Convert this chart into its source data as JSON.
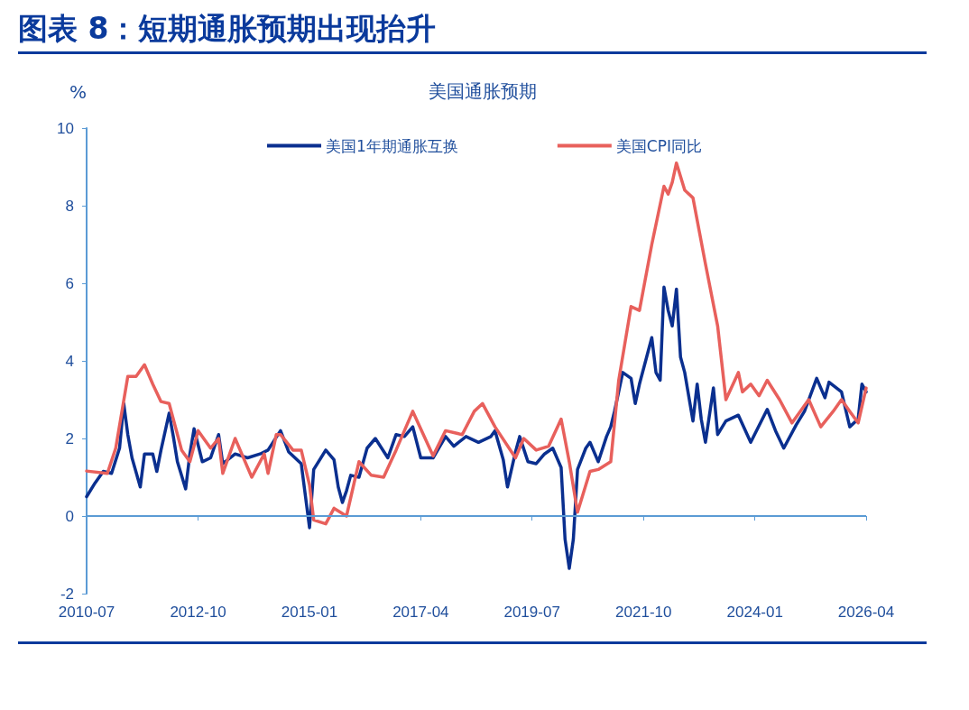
{
  "chart_data": {
    "type": "line",
    "title": "图表 8：短期通胀预期出现抬升",
    "subtitle": "美国通胀预期",
    "ylabel": "%",
    "xlim": [
      "2010-07",
      "2026-04"
    ],
    "xticks": [
      "2010-07",
      "2012-10",
      "2015-01",
      "2017-04",
      "2019-07",
      "2021-10",
      "2024-01",
      "2026-04"
    ],
    "ylim": [
      -2,
      10
    ],
    "yticks": [
      -2,
      0,
      2,
      4,
      6,
      8,
      10
    ],
    "grid": false,
    "legend": "top",
    "ref_lines": [
      {
        "axis": "y",
        "value": 0,
        "color": "#5b9bd5"
      }
    ],
    "marker": "none",
    "line_style": "solid",
    "series": [
      {
        "name": "美国1年期通胀互换",
        "color": "#0a2f8f",
        "x": [
          "2010-07",
          "2010-09",
          "2010-11",
          "2011-01",
          "2011-03",
          "2011-04",
          "2011-05",
          "2011-06",
          "2011-08",
          "2011-09",
          "2011-11",
          "2011-12",
          "2012-01",
          "2012-03",
          "2012-04",
          "2012-05",
          "2012-07",
          "2012-08",
          "2012-09",
          "2012-11",
          "2013-01",
          "2013-03",
          "2013-04",
          "2013-07",
          "2013-10",
          "2014-01",
          "2014-03",
          "2014-06",
          "2014-08",
          "2014-11",
          "2015-01",
          "2015-02",
          "2015-05",
          "2015-07",
          "2015-08",
          "2015-09",
          "2015-10",
          "2015-11",
          "2016-01",
          "2016-03",
          "2016-05",
          "2016-08",
          "2016-10",
          "2016-12",
          "2017-02",
          "2017-04",
          "2017-07",
          "2017-10",
          "2017-12",
          "2018-03",
          "2018-06",
          "2018-09",
          "2018-10",
          "2018-12",
          "2019-01",
          "2019-03",
          "2019-04",
          "2019-06",
          "2019-08",
          "2019-10",
          "2019-12",
          "2020-02",
          "2020-03",
          "2020-04",
          "2020-05",
          "2020-06",
          "2020-08",
          "2020-09",
          "2020-11",
          "2021-01",
          "2021-02",
          "2021-03",
          "2021-05",
          "2021-07",
          "2021-08",
          "2021-09",
          "2021-12",
          "2022-01",
          "2022-02",
          "2022-03",
          "2022-04",
          "2022-05",
          "2022-06",
          "2022-07",
          "2022-08",
          "2022-10",
          "2022-11",
          "2022-12",
          "2023-01",
          "2023-03",
          "2023-04",
          "2023-06",
          "2023-09",
          "2023-12",
          "2024-04",
          "2024-06",
          "2024-08",
          "2024-11",
          "2025-01",
          "2025-04",
          "2025-06",
          "2025-07",
          "2025-10",
          "2025-12",
          "2026-02",
          "2026-03",
          "2026-04"
        ],
        "values": [
          0.5,
          0.85,
          1.15,
          1.1,
          1.75,
          2.9,
          2.1,
          1.5,
          0.75,
          1.6,
          1.6,
          1.15,
          1.7,
          2.65,
          2.05,
          1.4,
          0.7,
          1.6,
          2.25,
          1.4,
          1.5,
          2.1,
          1.35,
          1.6,
          1.5,
          1.6,
          1.7,
          2.2,
          1.65,
          1.35,
          -0.3,
          1.2,
          1.7,
          1.45,
          0.75,
          0.35,
          0.65,
          1.05,
          1.0,
          1.75,
          2.0,
          1.5,
          2.1,
          2.05,
          2.3,
          1.5,
          1.5,
          2.05,
          1.8,
          2.05,
          1.9,
          2.05,
          2.2,
          1.45,
          0.75,
          1.65,
          2.05,
          1.4,
          1.35,
          1.6,
          1.75,
          1.25,
          -0.6,
          -1.35,
          -0.6,
          1.2,
          1.75,
          1.9,
          1.4,
          2.05,
          2.3,
          2.7,
          3.7,
          3.55,
          2.9,
          3.4,
          4.6,
          3.7,
          3.5,
          5.9,
          5.3,
          4.9,
          5.85,
          4.1,
          3.7,
          2.45,
          3.4,
          2.5,
          1.9,
          3.3,
          2.1,
          2.45,
          2.6,
          1.9,
          2.75,
          2.2,
          1.75,
          2.35,
          2.7,
          3.55,
          3.05,
          3.45,
          3.2,
          2.3,
          2.5,
          3.4,
          3.2
        ]
      },
      {
        "name": "美国CPI同比",
        "color": "#e8605c",
        "x": [
          "2010-07",
          "2010-12",
          "2011-02",
          "2011-05",
          "2011-07",
          "2011-09",
          "2011-11",
          "2012-01",
          "2012-03",
          "2012-06",
          "2012-08",
          "2012-10",
          "2013-01",
          "2013-03",
          "2013-04",
          "2013-07",
          "2013-11",
          "2014-02",
          "2014-03",
          "2014-05",
          "2014-06",
          "2014-09",
          "2014-11",
          "2015-01",
          "2015-02",
          "2015-05",
          "2015-07",
          "2015-10",
          "2016-01",
          "2016-04",
          "2016-07",
          "2016-10",
          "2017-02",
          "2017-07",
          "2017-10",
          "2018-02",
          "2018-05",
          "2018-07",
          "2018-10",
          "2019-03",
          "2019-05",
          "2019-08",
          "2019-11",
          "2020-02",
          "2020-04",
          "2020-06",
          "2020-09",
          "2020-11",
          "2021-02",
          "2021-04",
          "2021-07",
          "2021-09",
          "2021-12",
          "2022-03",
          "2022-04",
          "2022-05",
          "2022-06",
          "2022-08",
          "2022-10",
          "2023-01",
          "2023-04",
          "2023-06",
          "2023-09",
          "2023-10",
          "2023-12",
          "2024-02",
          "2024-04",
          "2024-07",
          "2024-10",
          "2025-02",
          "2025-05",
          "2025-08",
          "2025-10",
          "2025-12",
          "2026-02",
          "2026-04"
        ],
        "values": [
          1.16,
          1.1,
          1.75,
          3.6,
          3.6,
          3.9,
          3.4,
          2.95,
          2.9,
          1.7,
          1.4,
          2.2,
          1.75,
          2.0,
          1.1,
          2.0,
          1.0,
          1.6,
          1.1,
          2.1,
          2.1,
          1.7,
          1.7,
          0.8,
          -0.1,
          -0.2,
          0.2,
          0.0,
          1.4,
          1.05,
          1.0,
          1.7,
          2.7,
          1.55,
          2.2,
          2.1,
          2.7,
          2.9,
          2.3,
          1.5,
          2.0,
          1.7,
          1.8,
          2.5,
          1.4,
          0.1,
          1.15,
          1.2,
          1.4,
          3.5,
          5.4,
          5.3,
          7.0,
          8.5,
          8.3,
          8.6,
          9.1,
          8.4,
          8.2,
          6.5,
          4.9,
          3.0,
          3.7,
          3.2,
          3.4,
          3.1,
          3.5,
          3.0,
          2.4,
          3.0,
          2.3,
          2.7,
          3.0,
          2.7,
          2.4,
          3.3
        ]
      }
    ]
  }
}
